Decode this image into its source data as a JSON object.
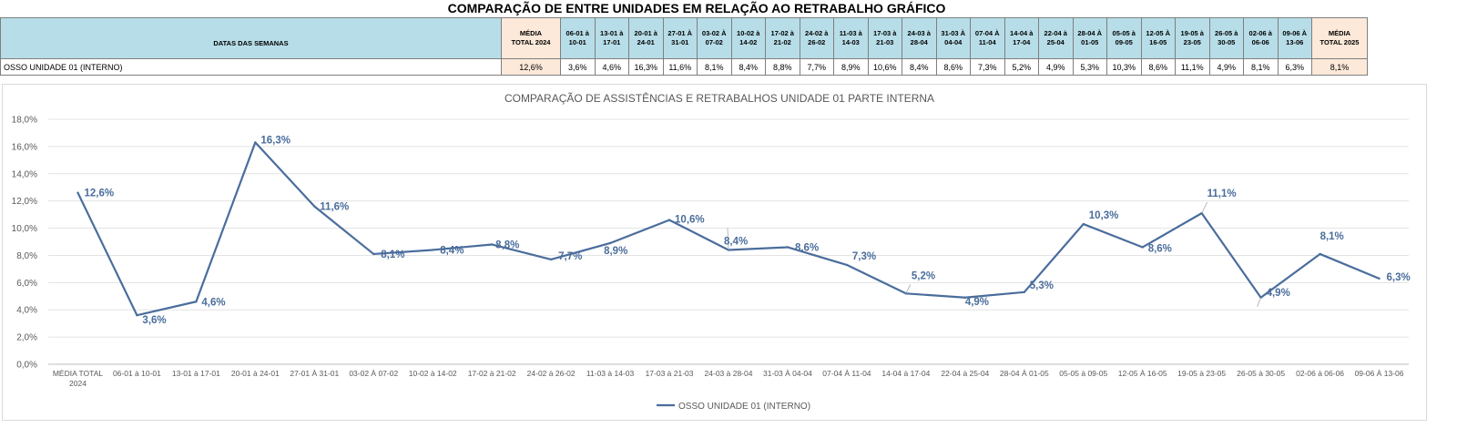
{
  "sheet": {
    "title": "COMPARAÇÃO DE ENTRE UNIDADES EM RELAÇÃO AO RETRABALHO GRÁFICO",
    "header_label": "DATAS DAS SEMANAS",
    "avg_2024_line1": "MÉDIA",
    "avg_2024_line2": "TOTAL 2024",
    "avg_2025_line1": "MÉDIA",
    "avg_2025_line2": "TOTAL 2025",
    "weeks": [
      {
        "l1": "06-01 à",
        "l2": "10-01"
      },
      {
        "l1": "13-01 à",
        "l2": "17-01"
      },
      {
        "l1": "20-01 à",
        "l2": "24-01"
      },
      {
        "l1": "27-01 À",
        "l2": "31-01"
      },
      {
        "l1": "03-02 À",
        "l2": "07-02"
      },
      {
        "l1": "10-02 à",
        "l2": "14-02"
      },
      {
        "l1": "17-02 à",
        "l2": "21-02"
      },
      {
        "l1": "24-02 à",
        "l2": "26-02"
      },
      {
        "l1": "11-03 à",
        "l2": "14-03"
      },
      {
        "l1": "17-03 à",
        "l2": "21-03"
      },
      {
        "l1": "24-03 à",
        "l2": "28-04"
      },
      {
        "l1": "31-03 À",
        "l2": "04-04"
      },
      {
        "l1": "07-04 À",
        "l2": "11-04"
      },
      {
        "l1": "14-04 à",
        "l2": "17-04"
      },
      {
        "l1": "22-04 à",
        "l2": "25-04"
      },
      {
        "l1": "28-04 À",
        "l2": "01-05"
      },
      {
        "l1": "05-05 à",
        "l2": "09-05"
      },
      {
        "l1": "12-05 À",
        "l2": "16-05"
      },
      {
        "l1": "19-05 à",
        "l2": "23-05"
      },
      {
        "l1": "26-05 à",
        "l2": "30-05"
      },
      {
        "l1": "02-06 à",
        "l2": "06-06"
      },
      {
        "l1": "09-06 À",
        "l2": "13-06"
      }
    ],
    "row_label": "OSSO UNIDADE 01 (INTERNO)",
    "avg_2024_value": "12,6%",
    "avg_2025_value": "8,1%",
    "week_values": [
      "3,6%",
      "4,6%",
      "16,3%",
      "11,6%",
      "8,1%",
      "8,4%",
      "8,8%",
      "7,7%",
      "8,9%",
      "10,6%",
      "8,4%",
      "8,6%",
      "7,3%",
      "5,2%",
      "4,9%",
      "5,3%",
      "10,3%",
      "8,6%",
      "11,1%",
      "4,9%",
      "8,1%",
      "6,3%"
    ]
  },
  "chart_data": {
    "type": "line",
    "title": "COMPARAÇÃO DE ASSISTÊNCIAS E RETRABALHOS UNIDADE 01 PARTE INTERNA",
    "xlabel": "",
    "ylabel": "",
    "ylim": [
      0,
      18
    ],
    "yticks": [
      "0,0%",
      "2,0%",
      "4,0%",
      "6,0%",
      "8,0%",
      "10,0%",
      "12,0%",
      "14,0%",
      "16,0%",
      "18,0%"
    ],
    "grid": true,
    "legend_position": "bottom",
    "line_color": "#4a6d9c",
    "categories": [
      [
        "MÉDIA TOTAL",
        "2024"
      ],
      [
        "06-01 à 10-01"
      ],
      [
        "13-01 à 17-01"
      ],
      [
        "20-01 à 24-01"
      ],
      [
        "27-01 À 31-01"
      ],
      [
        "03-02 À 07-02"
      ],
      [
        "10-02 à 14-02"
      ],
      [
        "17-02 à 21-02"
      ],
      [
        "24-02 à 26-02"
      ],
      [
        "11-03 à 14-03"
      ],
      [
        "17-03 à 21-03"
      ],
      [
        "24-03 à 28-04"
      ],
      [
        "31-03 À 04-04"
      ],
      [
        "07-04 À 11-04"
      ],
      [
        "14-04 à 17-04"
      ],
      [
        "22-04 à 25-04"
      ],
      [
        "28-04 À 01-05"
      ],
      [
        "05-05 à 09-05"
      ],
      [
        "12-05 À 16-05"
      ],
      [
        "19-05 à 23-05"
      ],
      [
        "26-05 à 30-05"
      ],
      [
        "02-06 à 06-06"
      ],
      [
        "09-06 À 13-06"
      ]
    ],
    "series": [
      {
        "name": "OSSO UNIDADE 01 (INTERNO)",
        "values": [
          12.6,
          3.6,
          4.6,
          16.3,
          11.6,
          8.1,
          8.4,
          8.8,
          7.7,
          8.9,
          10.6,
          8.4,
          8.6,
          7.3,
          5.2,
          4.9,
          5.3,
          10.3,
          8.6,
          11.1,
          4.9,
          8.1,
          6.3
        ],
        "labels": [
          "12,6%",
          "3,6%",
          "4,6%",
          "16,3%",
          "11,6%",
          "8,1%",
          "8,4%",
          "8,8%",
          "7,7%",
          "8,9%",
          "10,6%",
          "8,4%",
          "8,6%",
          "7,3%",
          "5,2%",
          "4,9%",
          "5,3%",
          "10,3%",
          "8,6%",
          "11,1%",
          "4,9%",
          "8,1%",
          "6,3%"
        ]
      }
    ]
  }
}
